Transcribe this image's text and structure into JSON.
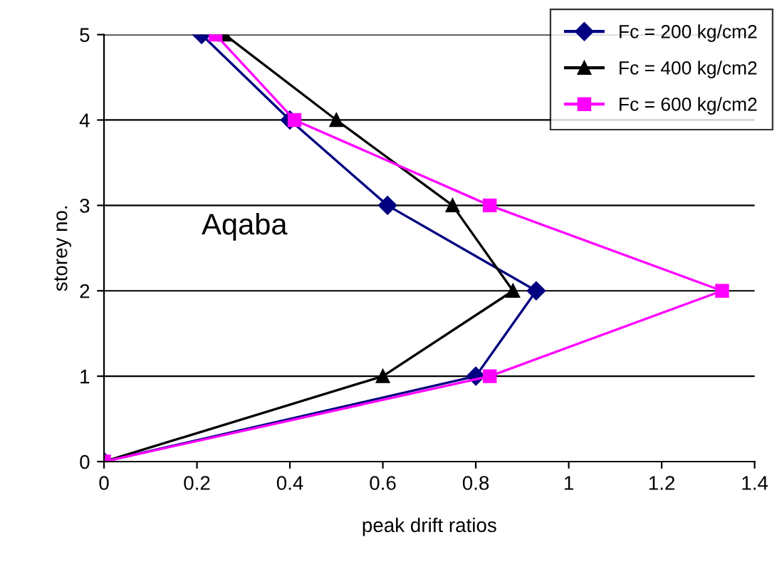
{
  "chart_data": {
    "type": "line",
    "xlabel": "peak drift ratios",
    "ylabel": "storey no.",
    "annotations": [
      "Aqaba"
    ],
    "xlim": [
      0,
      1.4
    ],
    "xticks": [
      0,
      0.2,
      0.4,
      0.6,
      0.8,
      1,
      1.2,
      1.4
    ],
    "ylim": [
      0,
      5
    ],
    "yticks": [
      0,
      1,
      2,
      3,
      4,
      5
    ],
    "grid": "y",
    "legend": "top right",
    "series": [
      {
        "name": "Fc = 200 kg/cm2",
        "color": "#000080",
        "marker": "diamond",
        "x": [
          0,
          0.8,
          0.93,
          0.61,
          0.4,
          0.21
        ],
        "values": [
          0,
          1,
          2,
          3,
          4,
          5
        ]
      },
      {
        "name": "Fc = 400 kg/cm2",
        "color": "#000000",
        "marker": "triangle",
        "x": [
          0,
          0.6,
          0.88,
          0.75,
          0.5,
          0.26
        ],
        "values": [
          0,
          1,
          2,
          3,
          4,
          5
        ]
      },
      {
        "name": "Fc = 600 kg/cm2",
        "color": "#ff00ff",
        "marker": "square",
        "x": [
          0,
          0.83,
          1.33,
          0.83,
          0.41,
          0.24
        ],
        "values": [
          0,
          1,
          2,
          3,
          4,
          5
        ]
      }
    ]
  }
}
